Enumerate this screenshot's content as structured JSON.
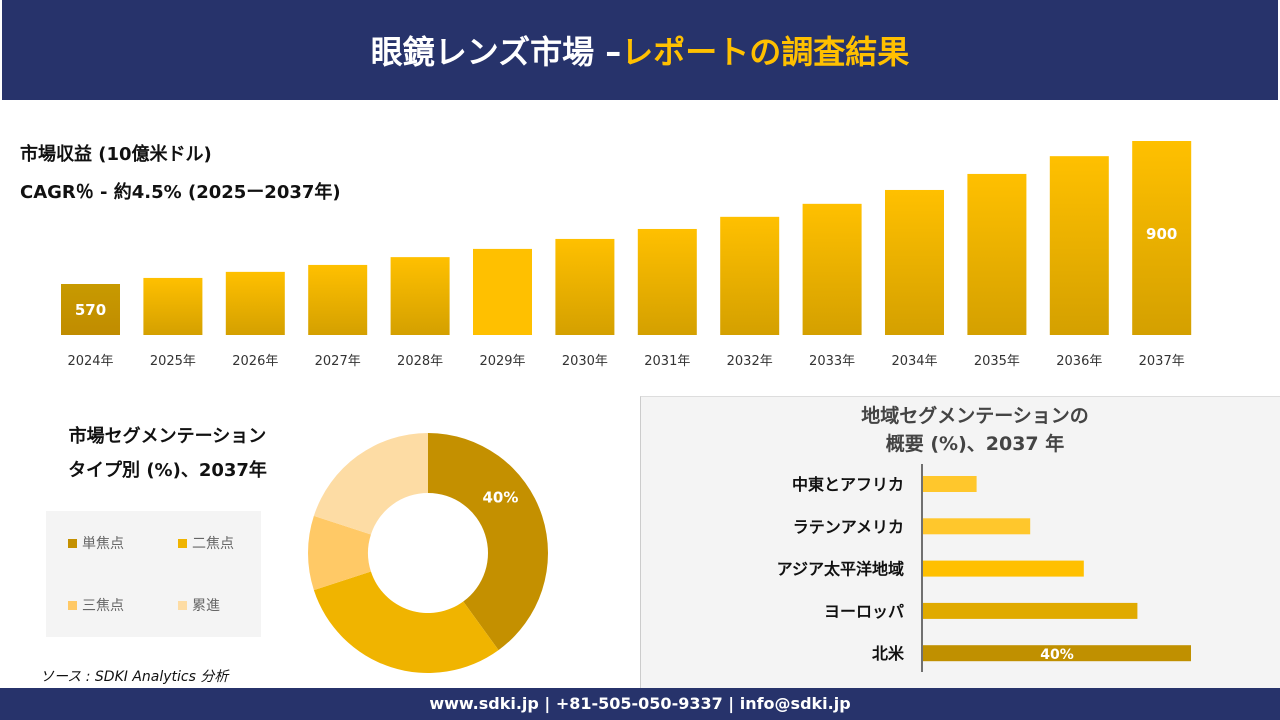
{
  "header": {
    "title_main": "眼鏡レンズ市場 –",
    "title_accent": "レポートの調査結果"
  },
  "revenue": {
    "label": "市場収益 (10億米ドル)",
    "cagr": "CAGR％ - 約4.5% (2025ー2037年)"
  },
  "colors": {
    "navy": "#27336b",
    "accent": "#ffc000"
  },
  "chart_data": [
    {
      "type": "bar",
      "categories": [
        "2024年",
        "2025年",
        "2026年",
        "2027年",
        "2028年",
        "2029年",
        "2030年",
        "2031年",
        "2032年",
        "2033年",
        "2034年",
        "2035年",
        "2036年",
        "2037年"
      ],
      "values": [
        570,
        584,
        598,
        614,
        632,
        651,
        674,
        697,
        725,
        755,
        787,
        824,
        865,
        900
      ],
      "data_labels": {
        "0": "570",
        "13": "900"
      },
      "title": "市場収益 (10億米ドル)",
      "xlabel": "",
      "ylabel": ""
    },
    {
      "type": "pie",
      "title": "市場セグメンテーション タイプ別 (%)、2037年",
      "title_lines": [
        "市場セグメンテーション",
        "タイプ別 (%)、2037年"
      ],
      "categories": [
        "単焦点",
        "二焦点",
        "三焦点",
        "累進"
      ],
      "values": [
        40,
        30,
        10,
        20
      ],
      "colors": [
        "#c49000",
        "#f0b400",
        "#ffc966",
        "#fddca4"
      ],
      "data_labels": {
        "0": "40%"
      },
      "legend": "left",
      "donut": true
    },
    {
      "type": "bar",
      "orientation": "horizontal",
      "title": "地域セグメンテーションの 概要 (%)、2037 年",
      "title_lines": [
        "地域セグメンテーションの",
        "概要 (%)、2037 年"
      ],
      "categories": [
        "中東とアフリカ",
        "ラテンアメリカ",
        "アジア太平洋地域",
        "ヨーロッパ",
        "北米"
      ],
      "values": [
        8,
        16,
        24,
        32,
        40
      ],
      "colors": [
        "#ffc72c",
        "#ffc72c",
        "#ffc000",
        "#e0aa00",
        "#c09000"
      ],
      "data_labels": {
        "4": "40%"
      }
    }
  ],
  "source": "ソース : SDKI Analytics 分析",
  "footer": "www.sdki.jp | +81-505-050-9337 | info@sdki.jp"
}
